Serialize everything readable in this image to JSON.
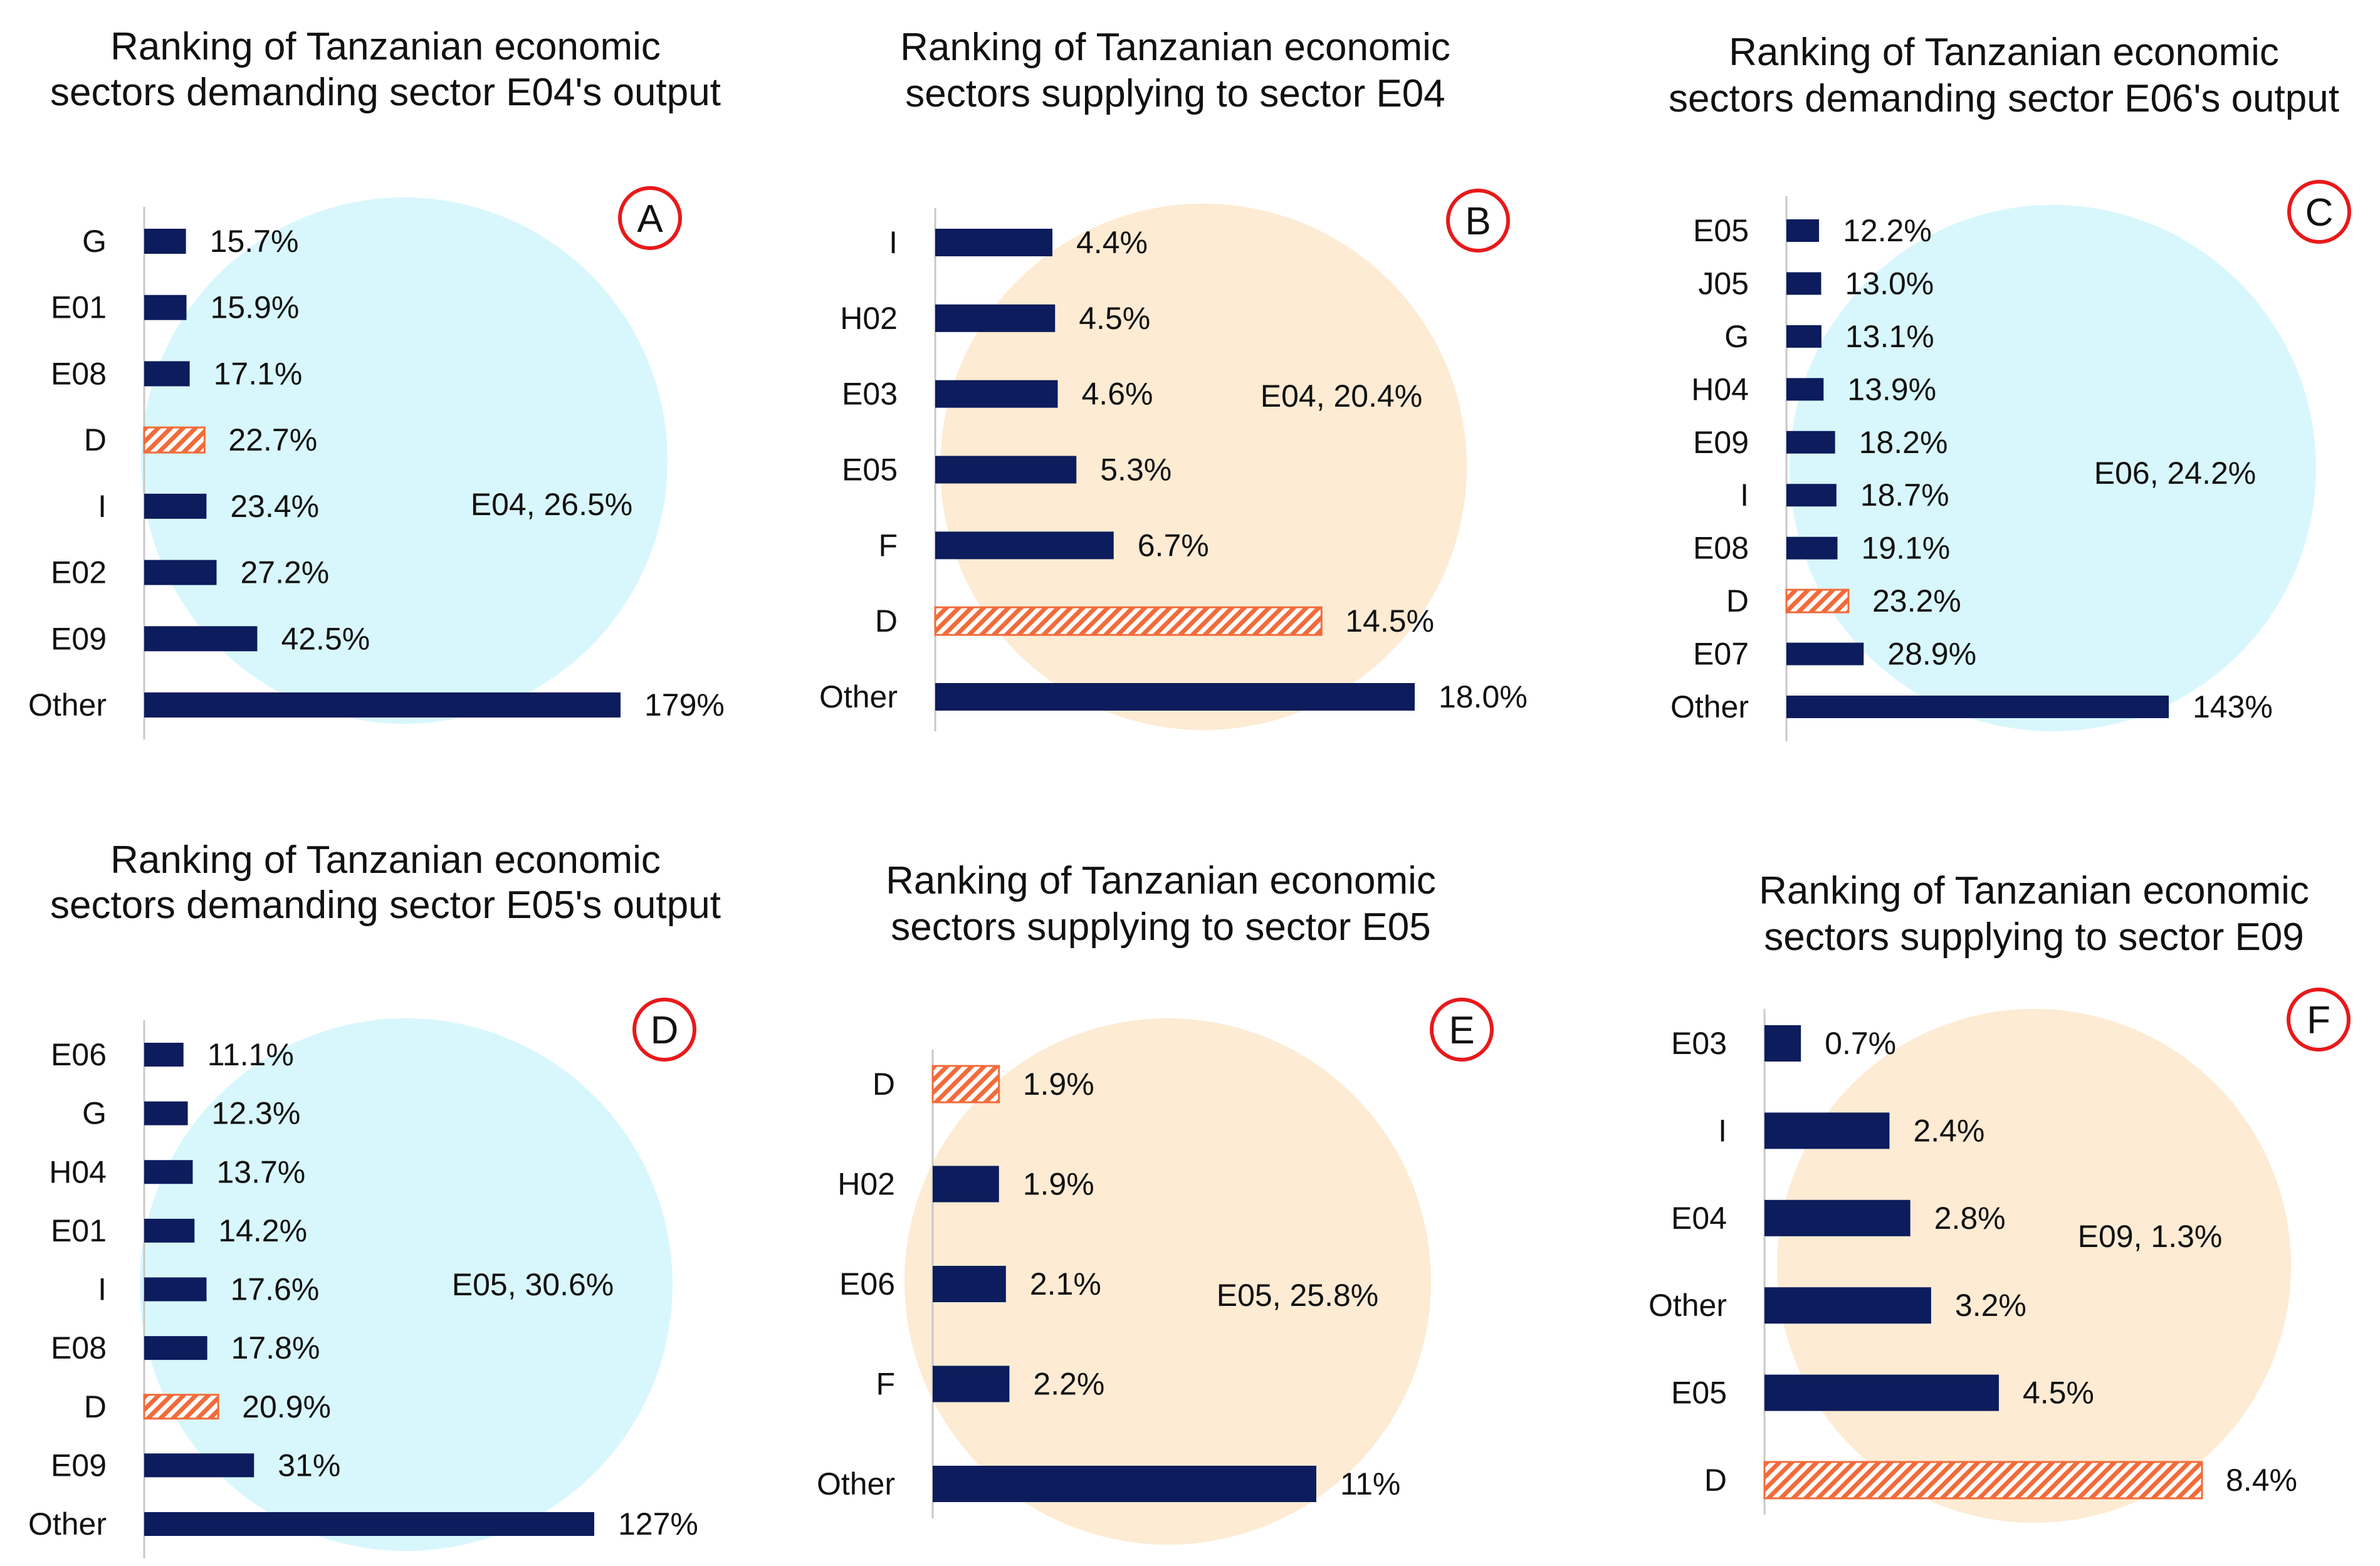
{
  "colors": {
    "bar": "#0c1c5c",
    "highlight": "#f26b3a",
    "circle_demand": "#d8f7fc",
    "circle_supply": "#fdebd3",
    "badge": "#e8191a",
    "axis": "#c8c8c8"
  },
  "chart_data": [
    {
      "type": "bar",
      "panel": "A",
      "title_lines": [
        "Ranking of Tanzanian economic",
        "sectors demanding sector E04's output"
      ],
      "circle_label": "E04, 26.5%",
      "circle_tone": "demand",
      "categories": [
        "G",
        "E01",
        "E08",
        "D",
        "I",
        "E02",
        "E09",
        "Other"
      ],
      "values": [
        15.7,
        15.9,
        17.1,
        22.7,
        23.4,
        27.2,
        42.5,
        179
      ],
      "value_labels": [
        "15.7%",
        "15.9%",
        "17.1%",
        "22.7%",
        "23.4%",
        "27.2%",
        "42.5%",
        "179%"
      ],
      "highlight": "D",
      "xlim": [
        0,
        179
      ]
    },
    {
      "type": "bar",
      "panel": "B",
      "title_lines": [
        "Ranking of Tanzanian economic",
        "sectors supplying to sector E04"
      ],
      "circle_label": "E04, 20.4%",
      "circle_tone": "supply",
      "categories": [
        "I",
        "H02",
        "E03",
        "E05",
        "F",
        "D",
        "Other"
      ],
      "values": [
        4.4,
        4.5,
        4.6,
        5.3,
        6.7,
        14.5,
        18.0
      ],
      "value_labels": [
        "4.4%",
        "4.5%",
        "4.6%",
        "5.3%",
        "6.7%",
        "14.5%",
        "18.0%"
      ],
      "highlight": "D",
      "xlim": [
        0,
        18
      ]
    },
    {
      "type": "bar",
      "panel": "C",
      "title_lines": [
        "Ranking of Tanzanian economic",
        "sectors demanding sector E06's output"
      ],
      "circle_label": "E06, 24.2%",
      "circle_tone": "demand",
      "categories": [
        "E05",
        "J05",
        "G",
        "H04",
        "E09",
        "I",
        "E08",
        "D",
        "E07",
        "Other"
      ],
      "values": [
        12.2,
        13.0,
        13.1,
        13.9,
        18.2,
        18.7,
        19.1,
        23.2,
        28.9,
        143
      ],
      "value_labels": [
        "12.2%",
        "13.0%",
        "13.1%",
        "13.9%",
        "18.2%",
        "18.7%",
        "19.1%",
        "23.2%",
        "28.9%",
        "143%"
      ],
      "highlight": "D",
      "xlim": [
        0,
        143
      ]
    },
    {
      "type": "bar",
      "panel": "D",
      "title_lines": [
        "Ranking of Tanzanian economic",
        "sectors demanding sector E05's output"
      ],
      "circle_label": "E05, 30.6%",
      "circle_tone": "demand",
      "categories": [
        "E06",
        "G",
        "H04",
        "E01",
        "I",
        "E08",
        "D",
        "E09",
        "Other"
      ],
      "values": [
        11.1,
        12.3,
        13.7,
        14.2,
        17.6,
        17.8,
        20.9,
        31,
        127
      ],
      "value_labels": [
        "11.1%",
        "12.3%",
        "13.7%",
        "14.2%",
        "17.6%",
        "17.8%",
        "20.9%",
        "31%",
        "127%"
      ],
      "highlight": "D",
      "xlim": [
        0,
        127
      ]
    },
    {
      "type": "bar",
      "panel": "E",
      "title_lines": [
        "Ranking of Tanzanian economic",
        "sectors supplying to sector E05"
      ],
      "circle_label": "E05, 25.8%",
      "circle_tone": "supply",
      "categories": [
        "D",
        "H02",
        "E06",
        "F",
        "Other"
      ],
      "values": [
        1.9,
        1.9,
        2.1,
        2.2,
        11
      ],
      "value_labels": [
        "1.9%",
        "1.9%",
        "2.1%",
        "2.2%",
        "11%"
      ],
      "highlight": "D",
      "xlim": [
        0,
        11
      ]
    },
    {
      "type": "bar",
      "panel": "F",
      "title_lines": [
        "Ranking of Tanzanian economic",
        "sectors supplying to sector E09"
      ],
      "circle_label": "E09, 1.3%",
      "circle_tone": "supply",
      "categories": [
        "E03",
        "I",
        "E04",
        "Other",
        "E05",
        "D"
      ],
      "values": [
        0.7,
        2.4,
        2.8,
        3.2,
        4.5,
        8.4
      ],
      "value_labels": [
        "0.7%",
        "2.4%",
        "2.8%",
        "3.2%",
        "4.5%",
        "8.4%"
      ],
      "highlight": "D",
      "xlim": [
        0,
        8.4
      ]
    }
  ]
}
